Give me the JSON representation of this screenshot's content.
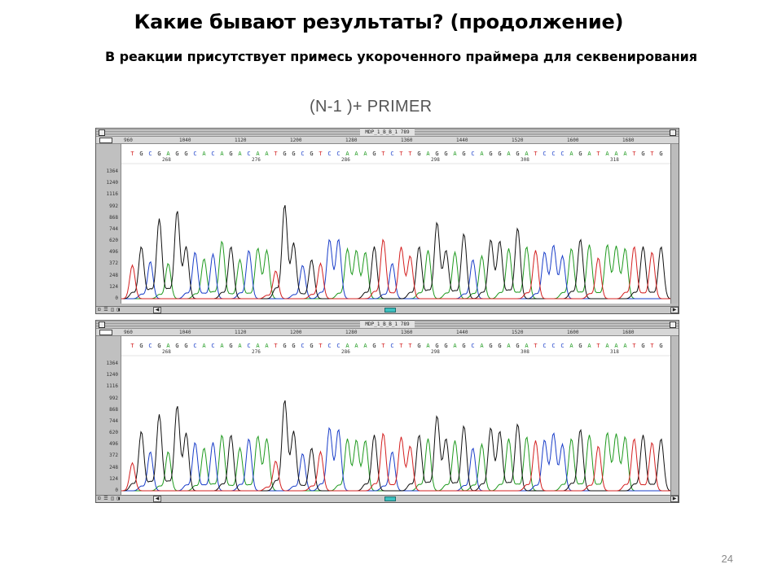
{
  "slide": {
    "title": "Какие бывают результаты? (продолжение)",
    "subtitle": "В реакции присутствует примесь укороченного праймера для секвенирования",
    "figure_caption": "(N-1 )+ PRIMER",
    "page_number": "24"
  },
  "panels": [
    {
      "id": "top",
      "window_title": "MDP_1_B_B_1 789",
      "ruler": [
        "960",
        "1040",
        "1120",
        "1200",
        "1280",
        "1360",
        "1440",
        "1520",
        "1600",
        "1680"
      ],
      "sequence": "TGCGAGGCACAGACAATGGCGTCCAAAGTCTTGAGGAGCAGGAGATCCCAGATAAATGTGC",
      "position_labels": [
        "268",
        "276",
        "286",
        "298",
        "308",
        "318"
      ],
      "y_ticks": [
        "1364",
        "1240",
        "1116",
        "992",
        "868",
        "744",
        "620",
        "496",
        "372",
        "248",
        "124",
        "0"
      ]
    },
    {
      "id": "bottom",
      "window_title": "MDP_1_B_B_1 789",
      "ruler": [
        "960",
        "1040",
        "1120",
        "1200",
        "1280",
        "1360",
        "1440",
        "1520",
        "1600",
        "1680"
      ],
      "sequence": "TGCGAGGCACAGACAATGGCGTCCAAAGTCTTGAGGAGCAGGAGATCCCAGATAAATGTGC",
      "position_labels": [
        "268",
        "276",
        "286",
        "298",
        "308",
        "318"
      ],
      "y_ticks": [
        "1364",
        "1240",
        "1116",
        "992",
        "868",
        "744",
        "620",
        "496",
        "372",
        "248",
        "124",
        "0"
      ]
    }
  ],
  "colors": {
    "A": "#1f9a1f",
    "C": "#1a3ec9",
    "G": "#111111",
    "T": "#d42020",
    "ruler_text": "#333333"
  },
  "chart_data": [
    {
      "type": "line",
      "title": "",
      "xlabel": "",
      "ylabel": "",
      "ylim": [
        0,
        1364
      ],
      "x": [
        0,
        1,
        2,
        3,
        4,
        5,
        6,
        7,
        8,
        9,
        10,
        11,
        12,
        13,
        14,
        15,
        16,
        17,
        18,
        19,
        20,
        21,
        22,
        23,
        24,
        25,
        26,
        27,
        28,
        29,
        30,
        31,
        32,
        33,
        34,
        35,
        36,
        37,
        38,
        39,
        40,
        41,
        42,
        43,
        44,
        45,
        46,
        47,
        48,
        49,
        50,
        51,
        52,
        53,
        54,
        55,
        56,
        57,
        58,
        59
      ],
      "peaks": [
        {
          "base": "T",
          "height": 360
        },
        {
          "base": "G",
          "height": 560
        },
        {
          "base": "C",
          "height": 400
        },
        {
          "base": "G",
          "height": 860
        },
        {
          "base": "A",
          "height": 380
        },
        {
          "base": "G",
          "height": 880
        },
        {
          "base": "G",
          "height": 560
        },
        {
          "base": "C",
          "height": 500
        },
        {
          "base": "A",
          "height": 430
        },
        {
          "base": "C",
          "height": 480
        },
        {
          "base": "A",
          "height": 620
        },
        {
          "base": "G",
          "height": 560
        },
        {
          "base": "A",
          "height": 420
        },
        {
          "base": "C",
          "height": 520
        },
        {
          "base": "A",
          "height": 480
        },
        {
          "base": "A",
          "height": 520
        },
        {
          "base": "T",
          "height": 300
        },
        {
          "base": "G",
          "height": 940
        },
        {
          "base": "G",
          "height": 600
        },
        {
          "base": "C",
          "height": 360
        },
        {
          "base": "G",
          "height": 420
        },
        {
          "base": "T",
          "height": 380
        },
        {
          "base": "C",
          "height": 560
        },
        {
          "base": "C",
          "height": 640
        },
        {
          "base": "A",
          "height": 480
        },
        {
          "base": "A",
          "height": 460
        },
        {
          "base": "A",
          "height": 500
        },
        {
          "base": "G",
          "height": 560
        },
        {
          "base": "T",
          "height": 640
        },
        {
          "base": "C",
          "height": 380
        },
        {
          "base": "T",
          "height": 500
        },
        {
          "base": "T",
          "height": 460
        },
        {
          "base": "G",
          "height": 560
        },
        {
          "base": "A",
          "height": 520
        },
        {
          "base": "G",
          "height": 760
        },
        {
          "base": "G",
          "height": 520
        },
        {
          "base": "A",
          "height": 500
        },
        {
          "base": "G",
          "height": 700
        },
        {
          "base": "C",
          "height": 420
        },
        {
          "base": "A",
          "height": 460
        },
        {
          "base": "G",
          "height": 560
        },
        {
          "base": "G",
          "height": 620
        },
        {
          "base": "A",
          "height": 540
        },
        {
          "base": "G",
          "height": 760
        },
        {
          "base": "A",
          "height": 560
        },
        {
          "base": "T",
          "height": 520
        },
        {
          "base": "C",
          "height": 440
        },
        {
          "base": "C",
          "height": 520
        },
        {
          "base": "C",
          "height": 460
        },
        {
          "base": "A",
          "height": 540
        },
        {
          "base": "G",
          "height": 640
        },
        {
          "base": "A",
          "height": 580
        },
        {
          "base": "T",
          "height": 440
        },
        {
          "base": "A",
          "height": 520
        },
        {
          "base": "A",
          "height": 500
        },
        {
          "base": "A",
          "height": 540
        },
        {
          "base": "T",
          "height": 560
        },
        {
          "base": "G",
          "height": 560
        },
        {
          "base": "T",
          "height": 500
        },
        {
          "base": "G",
          "height": 560
        }
      ],
      "series": [
        {
          "name": "A",
          "values": [
            0,
            0,
            0,
            0,
            380,
            0,
            0,
            0,
            430,
            0,
            620,
            0,
            420,
            0,
            480,
            520,
            0,
            0,
            0,
            0,
            0,
            0,
            0,
            0,
            480,
            460,
            500,
            0,
            0,
            0,
            0,
            0,
            0,
            520,
            0,
            0,
            500,
            0,
            0,
            460,
            0,
            0,
            540,
            0,
            560,
            0,
            0,
            0,
            0,
            540,
            0,
            580,
            0,
            520,
            500,
            540,
            0,
            0,
            0,
            0
          ]
        },
        {
          "name": "C",
          "values": [
            0,
            0,
            400,
            0,
            0,
            0,
            0,
            500,
            0,
            480,
            0,
            0,
            0,
            520,
            0,
            0,
            0,
            0,
            0,
            360,
            0,
            0,
            560,
            640,
            0,
            0,
            0,
            0,
            0,
            380,
            0,
            0,
            0,
            0,
            0,
            0,
            0,
            0,
            420,
            0,
            0,
            0,
            0,
            0,
            0,
            0,
            440,
            520,
            460,
            0,
            0,
            0,
            0,
            0,
            0,
            0,
            0,
            0,
            0,
            0
          ]
        },
        {
          "name": "G",
          "values": [
            0,
            560,
            0,
            860,
            0,
            880,
            560,
            0,
            0,
            0,
            0,
            560,
            0,
            0,
            0,
            0,
            0,
            940,
            600,
            0,
            420,
            0,
            0,
            0,
            0,
            0,
            0,
            560,
            0,
            0,
            0,
            0,
            560,
            0,
            760,
            520,
            0,
            700,
            0,
            0,
            560,
            620,
            0,
            760,
            0,
            0,
            0,
            0,
            0,
            0,
            640,
            0,
            0,
            0,
            0,
            0,
            0,
            560,
            0,
            560
          ]
        },
        {
          "name": "T",
          "values": [
            360,
            0,
            0,
            0,
            0,
            0,
            0,
            0,
            0,
            0,
            0,
            0,
            0,
            0,
            0,
            0,
            300,
            0,
            0,
            0,
            0,
            380,
            0,
            0,
            0,
            0,
            0,
            0,
            640,
            0,
            500,
            460,
            0,
            0,
            0,
            0,
            0,
            0,
            0,
            0,
            0,
            0,
            0,
            0,
            0,
            520,
            0,
            0,
            0,
            0,
            0,
            0,
            440,
            0,
            0,
            0,
            560,
            0,
            500,
            0
          ]
        }
      ]
    },
    {
      "type": "line",
      "title": "",
      "xlabel": "",
      "ylabel": "",
      "ylim": [
        0,
        1364
      ],
      "x": [
        0,
        1,
        2,
        3,
        4,
        5,
        6,
        7,
        8,
        9,
        10,
        11,
        12,
        13,
        14,
        15,
        16,
        17,
        18,
        19,
        20,
        21,
        22,
        23,
        24,
        25,
        26,
        27,
        28,
        29,
        30,
        31,
        32,
        33,
        34,
        35,
        36,
        37,
        38,
        39,
        40,
        41,
        42,
        43,
        44,
        45,
        46,
        47,
        48,
        49,
        50,
        51,
        52,
        53,
        54,
        55,
        56,
        57,
        58,
        59
      ],
      "peaks": [
        {
          "base": "T",
          "height": 300
        },
        {
          "base": "G",
          "height": 640
        },
        {
          "base": "C",
          "height": 420
        },
        {
          "base": "G",
          "height": 820
        },
        {
          "base": "A",
          "height": 420
        },
        {
          "base": "G",
          "height": 840
        },
        {
          "base": "G",
          "height": 620
        },
        {
          "base": "C",
          "height": 520
        },
        {
          "base": "A",
          "height": 460
        },
        {
          "base": "C",
          "height": 520
        },
        {
          "base": "A",
          "height": 600
        },
        {
          "base": "G",
          "height": 600
        },
        {
          "base": "A",
          "height": 460
        },
        {
          "base": "C",
          "height": 560
        },
        {
          "base": "A",
          "height": 520
        },
        {
          "base": "A",
          "height": 560
        },
        {
          "base": "T",
          "height": 320
        },
        {
          "base": "G",
          "height": 900
        },
        {
          "base": "G",
          "height": 640
        },
        {
          "base": "C",
          "height": 400
        },
        {
          "base": "G",
          "height": 460
        },
        {
          "base": "T",
          "height": 420
        },
        {
          "base": "C",
          "height": 600
        },
        {
          "base": "C",
          "height": 660
        },
        {
          "base": "A",
          "height": 500
        },
        {
          "base": "A",
          "height": 480
        },
        {
          "base": "A",
          "height": 540
        },
        {
          "base": "G",
          "height": 600
        },
        {
          "base": "T",
          "height": 620
        },
        {
          "base": "C",
          "height": 420
        },
        {
          "base": "T",
          "height": 520
        },
        {
          "base": "T",
          "height": 480
        },
        {
          "base": "G",
          "height": 600
        },
        {
          "base": "A",
          "height": 560
        },
        {
          "base": "G",
          "height": 740
        },
        {
          "base": "G",
          "height": 560
        },
        {
          "base": "A",
          "height": 540
        },
        {
          "base": "G",
          "height": 700
        },
        {
          "base": "C",
          "height": 460
        },
        {
          "base": "A",
          "height": 500
        },
        {
          "base": "G",
          "height": 600
        },
        {
          "base": "G",
          "height": 640
        },
        {
          "base": "A",
          "height": 560
        },
        {
          "base": "G",
          "height": 720
        },
        {
          "base": "A",
          "height": 580
        },
        {
          "base": "T",
          "height": 540
        },
        {
          "base": "C",
          "height": 480
        },
        {
          "base": "C",
          "height": 560
        },
        {
          "base": "C",
          "height": 500
        },
        {
          "base": "A",
          "height": 560
        },
        {
          "base": "G",
          "height": 660
        },
        {
          "base": "A",
          "height": 600
        },
        {
          "base": "T",
          "height": 480
        },
        {
          "base": "A",
          "height": 560
        },
        {
          "base": "A",
          "height": 540
        },
        {
          "base": "A",
          "height": 580
        },
        {
          "base": "T",
          "height": 560
        },
        {
          "base": "G",
          "height": 600
        },
        {
          "base": "T",
          "height": 520
        },
        {
          "base": "G",
          "height": 560
        }
      ],
      "series": [
        {
          "name": "A",
          "values": [
            0,
            0,
            0,
            0,
            420,
            0,
            0,
            0,
            460,
            0,
            600,
            0,
            460,
            0,
            520,
            560,
            0,
            0,
            0,
            0,
            0,
            0,
            0,
            0,
            500,
            480,
            540,
            0,
            0,
            0,
            0,
            0,
            0,
            560,
            0,
            0,
            540,
            0,
            0,
            500,
            0,
            0,
            560,
            0,
            580,
            0,
            0,
            0,
            0,
            560,
            0,
            600,
            0,
            560,
            540,
            580,
            0,
            0,
            0,
            0
          ]
        },
        {
          "name": "C",
          "values": [
            0,
            0,
            420,
            0,
            0,
            0,
            0,
            520,
            0,
            520,
            0,
            0,
            0,
            560,
            0,
            0,
            0,
            0,
            0,
            400,
            0,
            0,
            600,
            660,
            0,
            0,
            0,
            0,
            0,
            420,
            0,
            0,
            0,
            0,
            0,
            0,
            0,
            0,
            460,
            0,
            0,
            0,
            0,
            0,
            0,
            0,
            480,
            560,
            500,
            0,
            0,
            0,
            0,
            0,
            0,
            0,
            0,
            0,
            0,
            0
          ]
        },
        {
          "name": "G",
          "values": [
            0,
            640,
            0,
            820,
            0,
            840,
            620,
            0,
            0,
            0,
            0,
            600,
            0,
            0,
            0,
            0,
            0,
            900,
            640,
            0,
            460,
            0,
            0,
            0,
            0,
            0,
            0,
            600,
            0,
            0,
            0,
            0,
            600,
            0,
            740,
            560,
            0,
            700,
            0,
            0,
            600,
            640,
            0,
            720,
            0,
            0,
            0,
            0,
            0,
            0,
            660,
            0,
            0,
            0,
            0,
            0,
            0,
            600,
            0,
            560
          ]
        },
        {
          "name": "T",
          "values": [
            300,
            0,
            0,
            0,
            0,
            0,
            0,
            0,
            0,
            0,
            0,
            0,
            0,
            0,
            0,
            0,
            320,
            0,
            0,
            0,
            0,
            420,
            0,
            0,
            0,
            0,
            0,
            0,
            620,
            0,
            520,
            480,
            0,
            0,
            0,
            0,
            0,
            0,
            0,
            0,
            0,
            0,
            0,
            0,
            0,
            540,
            0,
            0,
            0,
            0,
            0,
            0,
            480,
            0,
            0,
            0,
            560,
            0,
            520,
            0
          ]
        }
      ]
    }
  ]
}
